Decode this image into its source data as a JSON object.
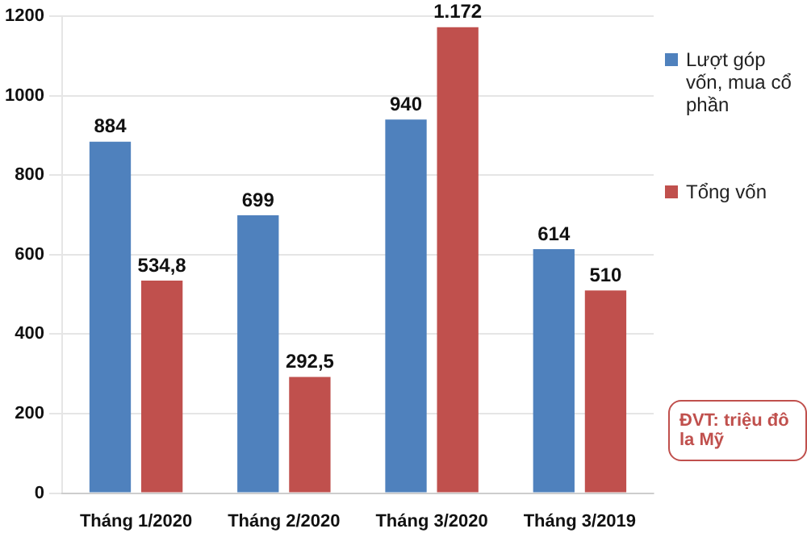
{
  "chart_data": {
    "type": "bar",
    "categories": [
      "Tháng 1/2020",
      "Tháng 2/2020",
      "Tháng 3/2020",
      "Tháng 3/2019"
    ],
    "series": [
      {
        "name": "Lượt góp vốn, mua cổ phần",
        "color": "#4f81bd",
        "values": [
          884,
          699,
          940,
          614
        ],
        "value_labels": [
          "884",
          "699",
          "940",
          "614"
        ]
      },
      {
        "name": "Tổng vốn",
        "color": "#c0504d",
        "values": [
          534.8,
          292.5,
          1172,
          510
        ],
        "value_labels": [
          "534,8",
          "292,5",
          "1.172",
          "510"
        ]
      }
    ],
    "ylim": [
      0,
      1200
    ],
    "yticks": [
      0,
      200,
      400,
      600,
      800,
      1000,
      1200
    ],
    "grid": "y",
    "legend": "right",
    "annotations": [
      "ĐVT: triệu đô la Mỹ"
    ]
  }
}
